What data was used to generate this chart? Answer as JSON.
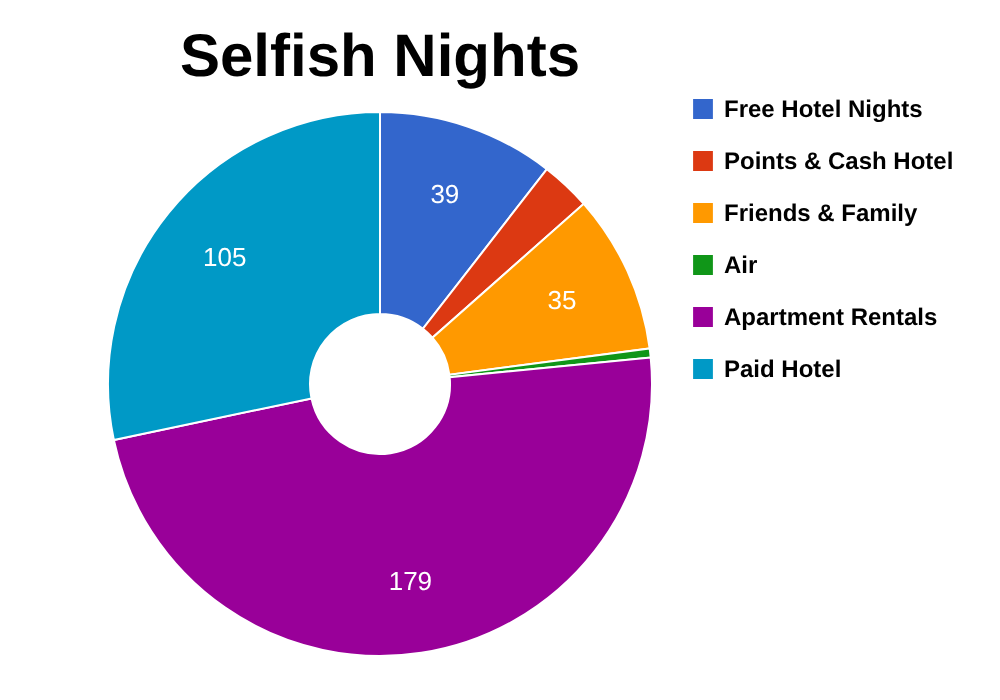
{
  "chart_data": {
    "type": "donut",
    "title": "Selfish Nights",
    "categories": [
      "Free Hotel Nights",
      "Points & Cash Hotel",
      "Friends & Family",
      "Air",
      "Apartment Rentals",
      "Paid Hotel"
    ],
    "values": [
      39,
      11,
      35,
      2,
      179,
      105
    ],
    "colors": [
      "#3366cc",
      "#dc3912",
      "#ff9900",
      "#109618",
      "#990099",
      "#0099c6"
    ],
    "value_labels": [
      "39",
      null,
      "35",
      null,
      "179",
      "105"
    ],
    "legend": "top right"
  }
}
